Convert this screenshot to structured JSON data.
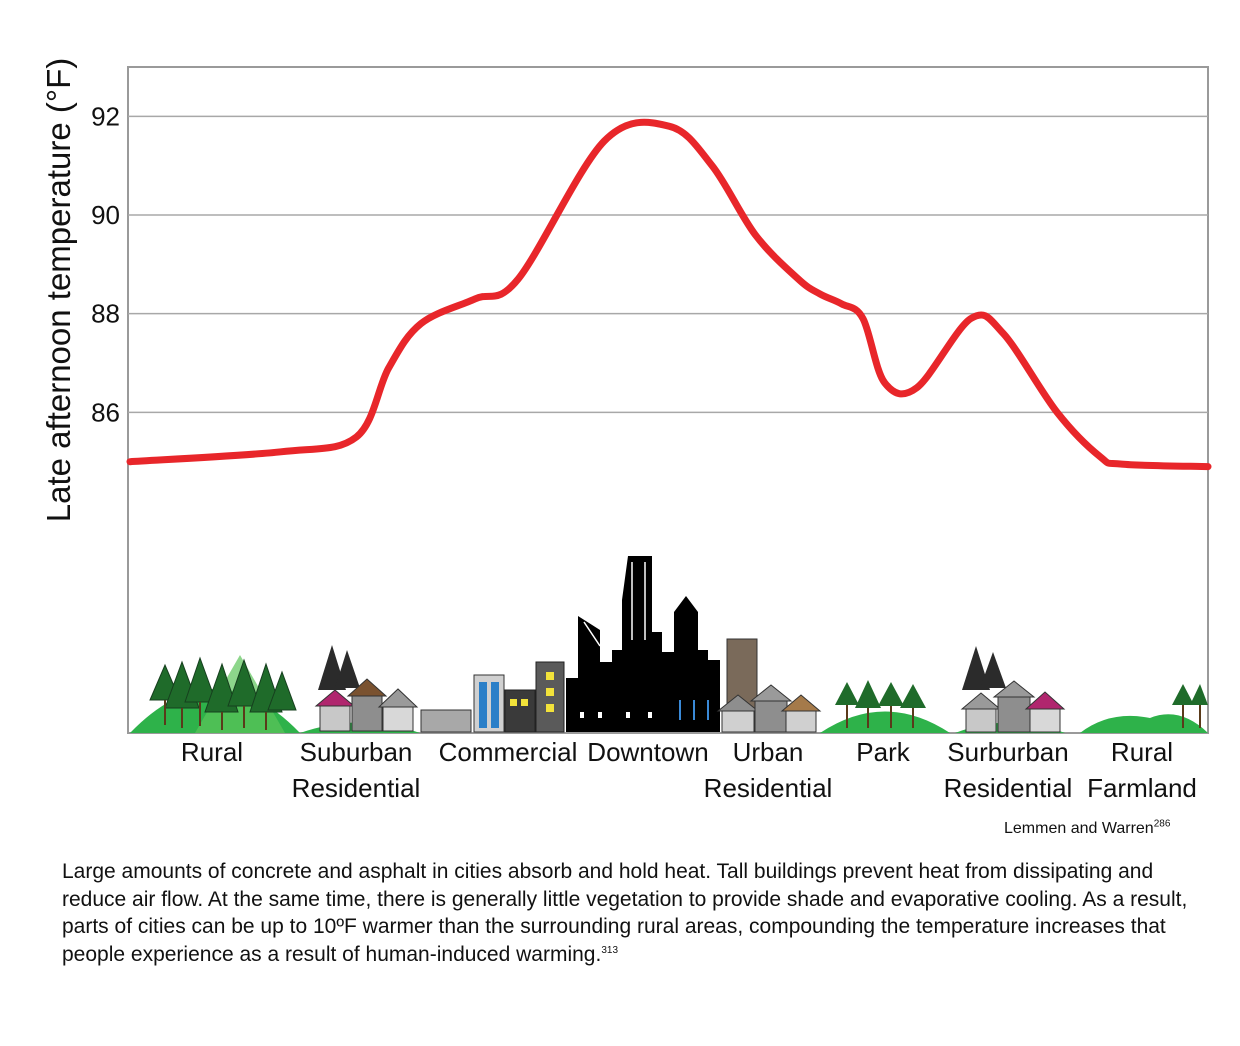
{
  "chart_data": {
    "type": "line",
    "ylabel": "Late afternoon temperature (°F)",
    "xlabel": "",
    "yticks": [
      86,
      88,
      90,
      92
    ],
    "ylim": [
      79.5,
      93
    ],
    "grid": true,
    "line_color": "#e8262a",
    "categories": [
      {
        "lines": [
          "Rural"
        ]
      },
      {
        "lines": [
          "Suburban",
          "Residential"
        ]
      },
      {
        "lines": [
          "Commercial"
        ]
      },
      {
        "lines": [
          "Downtown"
        ]
      },
      {
        "lines": [
          "Urban",
          "Residential"
        ]
      },
      {
        "lines": [
          "Park"
        ]
      },
      {
        "lines": [
          "Surburban",
          "Residential"
        ]
      },
      {
        "lines": [
          "Rural",
          "Farmland"
        ]
      }
    ],
    "series": [
      {
        "x": [
          0,
          0.14,
          0.21,
          0.24,
          0.27,
          0.32,
          0.36,
          0.44,
          0.5,
          0.54,
          0.58,
          0.62,
          0.64,
          0.66,
          0.68,
          0.7,
          0.73,
          0.78,
          0.81,
          0.86,
          0.9,
          0.92,
          1.0
        ],
        "values": [
          85.0,
          85.2,
          85.5,
          86.9,
          87.8,
          88.3,
          88.7,
          91.5,
          91.8,
          91.0,
          89.6,
          88.7,
          88.4,
          88.2,
          87.9,
          86.6,
          86.5,
          87.9,
          87.6,
          86.0,
          85.1,
          84.95,
          84.9
        ]
      }
    ]
  },
  "credit": {
    "text": "Lemmen and Warren",
    "ref": "286"
  },
  "caption": {
    "text": "Large amounts of concrete and asphalt in cities absorb and hold heat. Tall buildings prevent heat from dissipating and reduce air flow. At the same time, there is generally little vegetation to provide shade and evaporative cooling. As a result, parts of cities can be up to 10ºF warmer than the surrounding rural areas, compounding the temperature increases that people experience as a result of human-induced warming.",
    "ref": "313"
  }
}
